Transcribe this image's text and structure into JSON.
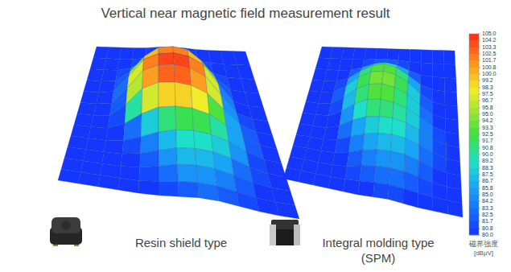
{
  "title": "Vertical near magnetic field measurement result",
  "chart_data": [
    {
      "type": "surface",
      "caption": "Resin shield type",
      "cells": [
        [
          80,
          80,
          80,
          80,
          80.5,
          81,
          81,
          80.5,
          80,
          80,
          80,
          80
        ],
        [
          80,
          80,
          80,
          81,
          83,
          85,
          85,
          83,
          81,
          80,
          80,
          80
        ],
        [
          80,
          80,
          81,
          85,
          96,
          98,
          98,
          96,
          85,
          81,
          80,
          80
        ],
        [
          80,
          80,
          82,
          95,
          100,
          102,
          102,
          100,
          95,
          82,
          80,
          80
        ],
        [
          80,
          80,
          83,
          97,
          102,
          104,
          104,
          102,
          97,
          84,
          80,
          80
        ],
        [
          80,
          80,
          82,
          96,
          101,
          103,
          103,
          101,
          97,
          85,
          81,
          80
        ],
        [
          80,
          80,
          81,
          90,
          97,
          99,
          99,
          98,
          93,
          86,
          82,
          80
        ],
        [
          80,
          80,
          80,
          83,
          88,
          91,
          92,
          92,
          90,
          86,
          82,
          80
        ],
        [
          80,
          80,
          80,
          81,
          84,
          87,
          89,
          89,
          88,
          85,
          81,
          80
        ],
        [
          80,
          80,
          80,
          80,
          82,
          85,
          87,
          87,
          86,
          83,
          81,
          80
        ],
        [
          80,
          80,
          80,
          80,
          81,
          83,
          85,
          85,
          84,
          82,
          80,
          80
        ],
        [
          80,
          80,
          80,
          80,
          80,
          81,
          82,
          83,
          82,
          81,
          80,
          80
        ]
      ]
    },
    {
      "type": "surface",
      "caption": "Integral molding type (SPM)",
      "cells": [
        [
          80,
          80,
          80,
          80,
          80,
          80,
          80,
          80,
          80,
          80,
          80,
          80
        ],
        [
          80,
          80,
          80,
          80,
          81,
          82,
          82,
          81,
          80,
          80,
          80,
          80
        ],
        [
          80,
          80,
          80,
          82,
          86,
          89,
          89,
          86,
          82,
          80,
          80,
          80
        ],
        [
          80,
          80,
          81,
          86,
          91,
          93,
          93,
          91,
          86,
          81,
          80,
          80
        ],
        [
          80,
          80,
          82,
          88,
          92,
          94,
          94,
          92,
          88,
          82,
          80,
          80
        ],
        [
          80,
          80,
          81,
          87,
          91,
          93,
          93,
          91,
          88,
          83,
          80,
          80
        ],
        [
          80,
          80,
          80,
          85,
          89,
          91,
          91,
          90,
          88,
          84,
          81,
          80
        ],
        [
          80,
          80,
          80,
          83,
          86,
          88,
          89,
          89,
          87,
          84,
          81,
          80
        ],
        [
          80,
          80,
          80,
          81,
          84,
          86,
          87,
          87,
          86,
          83,
          81,
          80
        ],
        [
          80,
          80,
          80,
          80,
          82,
          84,
          85,
          85,
          84,
          82,
          80,
          80
        ],
        [
          80,
          80,
          80,
          80,
          81,
          82,
          83,
          83,
          82,
          81,
          80,
          80
        ],
        [
          80,
          80,
          80,
          80,
          80,
          80,
          81,
          81,
          80,
          80,
          80,
          80
        ]
      ]
    }
  ],
  "color_bar": {
    "range": [
      80,
      105
    ],
    "ticks": [
      {
        "value": 105,
        "label": "105.0"
      },
      104.2,
      103.3,
      102.5,
      101.7,
      100.8,
      {
        "value": 100,
        "label": "100.0"
      },
      99.2,
      98.3,
      97.5,
      96.7,
      95.8,
      {
        "value": 95,
        "label": "95.0"
      },
      94.2,
      93.3,
      92.5,
      91.7,
      90.8,
      {
        "value": 90,
        "label": "90.0"
      },
      89.2,
      88.3,
      87.5,
      86.7,
      85.8,
      {
        "value": 85,
        "label": "85.0"
      },
      84.2,
      83.3,
      82.5,
      81.7,
      80.8,
      {
        "value": 80,
        "label": "80.0"
      }
    ],
    "label": "磁界強度",
    "unit": "[dBμV]"
  }
}
